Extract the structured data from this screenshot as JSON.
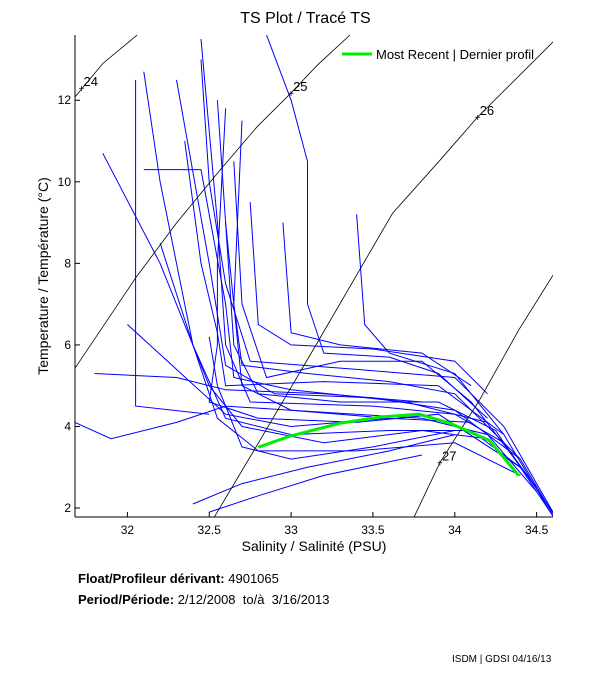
{
  "title": "TS Plot / Tracé TS",
  "float_label": "Float/Profileur dérivant:",
  "float_id": "4901065",
  "period_label": "Period/Période:",
  "period_value": "2/12/2008  to/à  3/16/2013",
  "footer": "ISDM | GDSI 04/16/13",
  "chart_data": {
    "type": "line",
    "title": "TS Plot / Tracé TS",
    "xlabel": "Salinity / Salinité (PSU)",
    "ylabel": "Temperature / Température (°C)",
    "xlim": [
      31.68,
      34.6
    ],
    "ylim": [
      1.78,
      13.6
    ],
    "xticks": [
      "32",
      "32.5",
      "33",
      "33.5",
      "34",
      "34.5"
    ],
    "yticks": [
      "2",
      "4",
      "6",
      "8",
      "10",
      "12"
    ],
    "grid": false,
    "legend": {
      "position": "top-right",
      "label": "Most Recent | Dernier profil"
    },
    "colors": {
      "profiles": "#0000ff",
      "most_recent": "#00ee00",
      "density": "#000000"
    },
    "density_contours": [
      {
        "label": "24",
        "label_at": [
          31.72,
          12.3
        ],
        "points": [
          [
            31.68,
            12.08
          ],
          [
            31.85,
            12.9
          ],
          [
            32.06,
            13.6
          ]
        ]
      },
      {
        "label": "25",
        "label_at": [
          33.0,
          12.18
        ],
        "points": [
          [
            31.68,
            5.43
          ],
          [
            32.05,
            7.64
          ],
          [
            32.3,
            8.99
          ],
          [
            32.55,
            10.21
          ],
          [
            32.79,
            11.34
          ],
          [
            33.0,
            12.18
          ],
          [
            33.16,
            12.86
          ],
          [
            33.36,
            13.6
          ]
        ]
      },
      {
        "label": "26",
        "label_at": [
          34.14,
          11.59
        ],
        "points": [
          [
            32.53,
            1.77
          ],
          [
            32.81,
            3.66
          ],
          [
            33.17,
            6.12
          ],
          [
            33.62,
            9.23
          ],
          [
            33.91,
            10.53
          ],
          [
            34.14,
            11.59
          ],
          [
            34.6,
            13.43
          ]
        ]
      },
      {
        "label": "27",
        "label_at": [
          33.91,
          3.12
        ],
        "points": [
          [
            33.75,
            1.77
          ],
          [
            33.91,
            3.12
          ],
          [
            34.15,
            4.64
          ],
          [
            34.39,
            6.36
          ],
          [
            34.6,
            7.71
          ]
        ]
      }
    ],
    "most_recent": [
      [
        32.8,
        3.49
      ],
      [
        32.99,
        3.76
      ],
      [
        33.3,
        4.08
      ],
      [
        33.54,
        4.23
      ],
      [
        33.78,
        4.3
      ],
      [
        33.97,
        4.08
      ],
      [
        34.21,
        3.66
      ],
      [
        34.39,
        2.8
      ]
    ],
    "profiles": [
      [
        [
          32.45,
          13.5
        ],
        [
          32.55,
          9
        ],
        [
          32.6,
          6
        ],
        [
          32.75,
          4.6
        ],
        [
          33.5,
          4.5
        ],
        [
          34,
          4.3
        ],
        [
          34.3,
          3.6
        ],
        [
          34.6,
          1.9
        ]
      ],
      [
        [
          32.3,
          12.5
        ],
        [
          32.5,
          8
        ],
        [
          32.6,
          5.5
        ],
        [
          32.9,
          4.8
        ],
        [
          33.5,
          4.7
        ],
        [
          34,
          4.4
        ],
        [
          34.4,
          3.2
        ],
        [
          34.6,
          1.85
        ]
      ],
      [
        [
          32.7,
          11.5
        ],
        [
          32.65,
          7
        ],
        [
          32.7,
          5
        ],
        [
          33,
          4.4
        ],
        [
          33.8,
          4.2
        ],
        [
          34.2,
          3.8
        ],
        [
          34.5,
          2.4
        ]
      ],
      [
        [
          32.1,
          12.7
        ],
        [
          32.2,
          10
        ],
        [
          32.4,
          6
        ],
        [
          32.6,
          4.2
        ],
        [
          33,
          3.8
        ],
        [
          33.6,
          3.9
        ],
        [
          34.1,
          3.9
        ],
        [
          34.4,
          3
        ]
      ],
      [
        [
          31.85,
          10.7
        ],
        [
          32.2,
          8
        ],
        [
          32.5,
          5
        ],
        [
          32.7,
          4
        ],
        [
          33.2,
          3.6
        ],
        [
          33.8,
          3.9
        ],
        [
          34.2,
          3.7
        ]
      ],
      [
        [
          32.85,
          13.6
        ],
        [
          33.0,
          12
        ],
        [
          33.1,
          10.5
        ],
        [
          33.1,
          7
        ],
        [
          33.2,
          5.8
        ],
        [
          33.6,
          5.7
        ],
        [
          33.9,
          5.3
        ],
        [
          34.2,
          4.2
        ]
      ],
      [
        [
          33.4,
          9.2
        ],
        [
          33.45,
          6.5
        ],
        [
          33.6,
          5.8
        ],
        [
          34.0,
          5.3
        ],
        [
          34.3,
          3.8
        ]
      ],
      [
        [
          32.6,
          11.8
        ],
        [
          32.55,
          8
        ],
        [
          32.55,
          6
        ],
        [
          32.5,
          4.6
        ],
        [
          32.8,
          4.2
        ],
        [
          33.4,
          4.1
        ],
        [
          33.9,
          4.3
        ],
        [
          34.4,
          3
        ]
      ],
      [
        [
          32.65,
          10.5
        ],
        [
          32.7,
          7
        ],
        [
          32.85,
          5.2
        ],
        [
          33.3,
          5.6
        ],
        [
          33.8,
          5.6
        ],
        [
          34.1,
          4.6
        ],
        [
          34.5,
          2.5
        ]
      ],
      [
        [
          31.68,
          4.1
        ],
        [
          31.9,
          3.7
        ],
        [
          32.3,
          4.1
        ],
        [
          32.6,
          4.5
        ],
        [
          33,
          4.4
        ],
        [
          33.6,
          4.2
        ]
      ],
      [
        [
          31.8,
          5.3
        ],
        [
          32.3,
          5.2
        ],
        [
          32.6,
          4.9
        ],
        [
          33.2,
          4.8
        ],
        [
          33.8,
          4.6
        ]
      ],
      [
        [
          32.4,
          2.1
        ],
        [
          32.7,
          2.6
        ],
        [
          33.1,
          3.0
        ],
        [
          33.6,
          3.4
        ],
        [
          34,
          3.8
        ]
      ],
      [
        [
          32.5,
          1.9
        ],
        [
          32.8,
          2.3
        ],
        [
          33.2,
          2.8
        ],
        [
          33.8,
          3.3
        ]
      ],
      [
        [
          32.75,
          9.5
        ],
        [
          32.8,
          6.5
        ],
        [
          33.0,
          6.0
        ],
        [
          33.5,
          5.9
        ],
        [
          34.0,
          5.6
        ],
        [
          34.2,
          4.8
        ]
      ],
      [
        [
          32.35,
          11.0
        ],
        [
          32.45,
          8.0
        ],
        [
          32.55,
          6.3
        ],
        [
          32.6,
          5
        ],
        [
          33.2,
          5.1
        ],
        [
          33.9,
          5.0
        ],
        [
          34.3,
          3.8
        ],
        [
          34.6,
          1.8
        ]
      ],
      [
        [
          32.1,
          10.3
        ],
        [
          32.45,
          10.3
        ],
        [
          32.6,
          7
        ],
        [
          32.65,
          5.2
        ],
        [
          33,
          4.9
        ],
        [
          33.7,
          4.6
        ],
        [
          34.2,
          4.1
        ]
      ],
      [
        [
          32.55,
          12
        ],
        [
          32.6,
          9
        ],
        [
          32.65,
          7
        ],
        [
          32.7,
          5.5
        ],
        [
          33.1,
          5.3
        ],
        [
          33.6,
          5.1
        ],
        [
          34.0,
          4.8
        ],
        [
          34.4,
          3.2
        ]
      ],
      [
        [
          32.5,
          6.2
        ],
        [
          32.55,
          5
        ],
        [
          32.7,
          3.5
        ],
        [
          33.0,
          3.2
        ],
        [
          33.5,
          3.5
        ],
        [
          34.0,
          3.9
        ]
      ],
      [
        [
          32.0,
          6.5
        ],
        [
          32.3,
          5.4
        ],
        [
          32.6,
          4.3
        ],
        [
          33.0,
          4.0
        ],
        [
          33.6,
          4.2
        ],
        [
          34.1,
          4.1
        ]
      ],
      [
        [
          32.95,
          9.0
        ],
        [
          33.0,
          6.3
        ],
        [
          33.3,
          6.0
        ],
        [
          33.8,
          5.8
        ],
        [
          34.1,
          5.0
        ]
      ],
      [
        [
          32.05,
          12.5
        ],
        [
          32.05,
          4.5
        ],
        [
          32.5,
          4.3
        ]
      ],
      [
        [
          32.45,
          13.0
        ],
        [
          32.5,
          10.0
        ],
        [
          32.6,
          7.5
        ],
        [
          32.75,
          5.6
        ],
        [
          33.4,
          5.4
        ],
        [
          34.0,
          5.2
        ],
        [
          34.3,
          4.0
        ],
        [
          34.6,
          1.9
        ]
      ],
      [
        [
          32.2,
          8.5
        ],
        [
          32.4,
          6.0
        ],
        [
          32.55,
          4.2
        ],
        [
          32.8,
          3.4
        ],
        [
          33.4,
          3.4
        ],
        [
          34.0,
          3.6
        ],
        [
          34.4,
          2.8
        ]
      ],
      [
        [
          32.6,
          9
        ],
        [
          32.65,
          6
        ],
        [
          32.8,
          4.8
        ],
        [
          33.3,
          4.6
        ],
        [
          33.9,
          4.6
        ],
        [
          34.25,
          3.9
        ],
        [
          34.6,
          1.8
        ]
      ]
    ]
  }
}
